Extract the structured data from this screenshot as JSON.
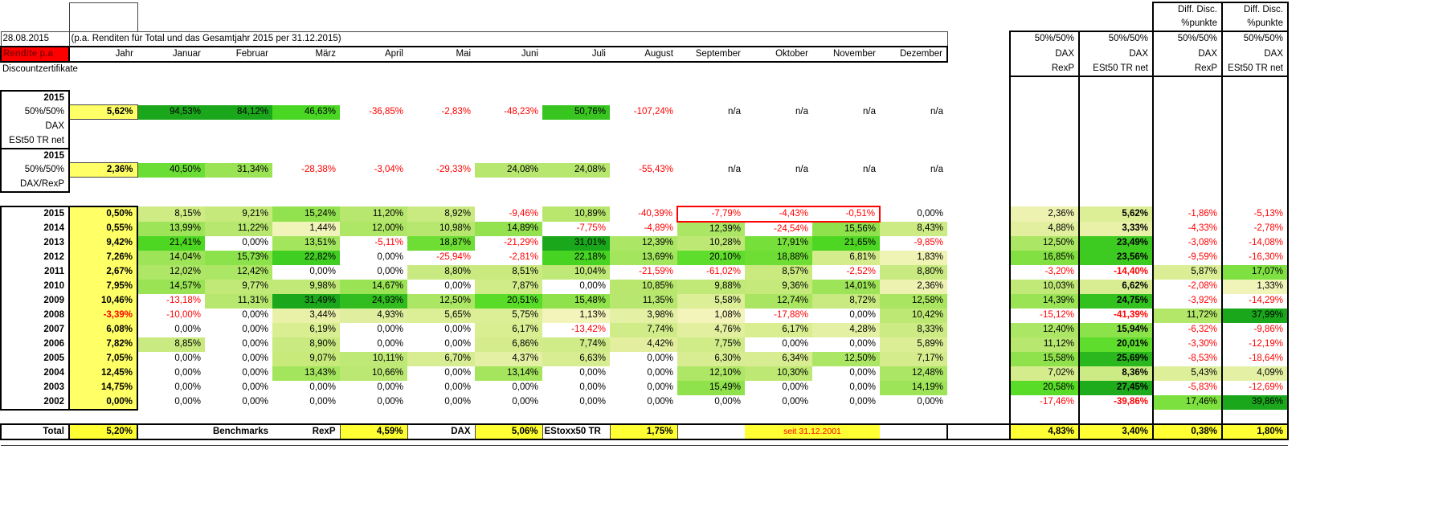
{
  "sheet": {
    "date": "28.08.2015",
    "note": "(p.a. Renditen für Total und das Gesamtjahr 2015 per 31.12.2015)",
    "title": "Rendite p.a",
    "jahr_label": "Jahr",
    "section": "Discountzertifikate",
    "months": [
      "Januar",
      "Februar",
      "März",
      "April",
      "Mai",
      "Juni",
      "Juli",
      "August",
      "September",
      "Oktober",
      "November",
      "Dezember"
    ],
    "right_cols": [
      {
        "top1": "",
        "top2": "",
        "l1": "50%/50%",
        "l2": "DAX",
        "l3": "RexP"
      },
      {
        "top1": "",
        "top2": "",
        "l1": "50%/50%",
        "l2": "DAX",
        "l3": "ESt50 TR net"
      },
      {
        "top1": "Diff. Disc.",
        "top2": "%punkte",
        "l1": "50%/50%",
        "l2": "DAX",
        "l3": "RexP"
      },
      {
        "top1": "Diff. Disc.",
        "top2": "%punkte",
        "l1": "50%/50%",
        "l2": "DAX",
        "l3": "ESt50 TR net"
      }
    ],
    "blocks": [
      {
        "labels": [
          "2015",
          "50%/50%",
          "DAX",
          "ESt50 TR net"
        ],
        "jahr": "5,62%",
        "months": [
          "94,53%",
          "84,12%",
          "46,63%",
          "-36,85%",
          "-2,83%",
          "-48,23%",
          "50,76%",
          "-107,24%",
          "n/a",
          "n/a",
          "n/a",
          "n/a"
        ]
      },
      {
        "labels": [
          "2015",
          "50%/50%",
          "DAX/RexP"
        ],
        "jahr": "2,36%",
        "months": [
          "40,50%",
          "31,34%",
          "-28,38%",
          "-3,04%",
          "-29,33%",
          "24,08%",
          "24,08%",
          "-55,43%",
          "n/a",
          "n/a",
          "n/a",
          "n/a"
        ]
      }
    ],
    "years": [
      {
        "year": "2015",
        "jahr": "0,50%",
        "months": [
          "8,15%",
          "9,21%",
          "15,24%",
          "11,20%",
          "8,92%",
          "-9,46%",
          "10,89%",
          "-40,39%",
          "-7,79%",
          "-4,43%",
          "-0,51%",
          "0,00%"
        ],
        "right": [
          "2,36%",
          "5,62%",
          "-1,86%",
          "-5,13%"
        ]
      },
      {
        "year": "2014",
        "jahr": "0,55%",
        "months": [
          "13,99%",
          "11,22%",
          "1,44%",
          "12,00%",
          "10,98%",
          "14,89%",
          "-7,75%",
          "-4,89%",
          "12,39%",
          "-24,54%",
          "15,56%",
          "8,43%"
        ],
        "right": [
          "4,88%",
          "3,33%",
          "-4,33%",
          "-2,78%"
        ]
      },
      {
        "year": "2013",
        "jahr": "9,42%",
        "months": [
          "21,41%",
          "0,00%",
          "13,51%",
          "-5,11%",
          "18,87%",
          "-21,29%",
          "31,01%",
          "12,39%",
          "10,28%",
          "17,91%",
          "21,65%",
          "-9,85%"
        ],
        "right": [
          "12,50%",
          "23,49%",
          "-3,08%",
          "-14,08%"
        ]
      },
      {
        "year": "2012",
        "jahr": "7,26%",
        "months": [
          "14,04%",
          "15,73%",
          "22,82%",
          "0,00%",
          "-25,94%",
          "-2,81%",
          "22,18%",
          "13,69%",
          "20,10%",
          "18,88%",
          "6,81%",
          "1,83%"
        ],
        "right": [
          "16,85%",
          "23,56%",
          "-9,59%",
          "-16,30%"
        ]
      },
      {
        "year": "2011",
        "jahr": "2,67%",
        "months": [
          "12,02%",
          "12,42%",
          "0,00%",
          "0,00%",
          "8,80%",
          "8,51%",
          "10,04%",
          "-21,59%",
          "-61,02%",
          "8,57%",
          "-2,52%",
          "8,80%"
        ],
        "right": [
          "-3,20%",
          "-14,40%",
          "5,87%",
          "17,07%"
        ]
      },
      {
        "year": "2010",
        "jahr": "7,95%",
        "months": [
          "14,57%",
          "9,77%",
          "9,98%",
          "14,67%",
          "0,00%",
          "7,87%",
          "0,00%",
          "10,85%",
          "9,88%",
          "9,36%",
          "14,01%",
          "2,36%"
        ],
        "right": [
          "10,03%",
          "6,62%",
          "-2,08%",
          "1,33%"
        ]
      },
      {
        "year": "2009",
        "jahr": "10,46%",
        "months": [
          "-13,18%",
          "11,31%",
          "31,49%",
          "24,93%",
          "12,50%",
          "20,51%",
          "15,48%",
          "11,35%",
          "5,58%",
          "12,74%",
          "8,72%",
          "12,58%"
        ],
        "right": [
          "14,39%",
          "24,75%",
          "-3,92%",
          "-14,29%"
        ]
      },
      {
        "year": "2008",
        "jahr": "-3,39%",
        "months": [
          "-10,00%",
          "0,00%",
          "3,44%",
          "4,93%",
          "5,65%",
          "5,75%",
          "1,13%",
          "3,98%",
          "1,08%",
          "-17,88%",
          "0,00%",
          "10,42%"
        ],
        "right": [
          "-15,12%",
          "-41,39%",
          "11,72%",
          "37,99%"
        ]
      },
      {
        "year": "2007",
        "jahr": "6,08%",
        "months": [
          "0,00%",
          "0,00%",
          "6,19%",
          "0,00%",
          "0,00%",
          "6,17%",
          "-13,42%",
          "7,74%",
          "4,76%",
          "6,17%",
          "4,28%",
          "8,33%"
        ],
        "right": [
          "12,40%",
          "15,94%",
          "-6,32%",
          "-9,86%"
        ]
      },
      {
        "year": "2006",
        "jahr": "7,82%",
        "months": [
          "8,85%",
          "0,00%",
          "8,90%",
          "0,00%",
          "0,00%",
          "6,86%",
          "7,74%",
          "4,42%",
          "7,75%",
          "0,00%",
          "0,00%",
          "5,89%"
        ],
        "right": [
          "11,12%",
          "20,01%",
          "-3,30%",
          "-12,19%"
        ]
      },
      {
        "year": "2005",
        "jahr": "7,05%",
        "months": [
          "0,00%",
          "0,00%",
          "9,07%",
          "10,11%",
          "6,70%",
          "4,37%",
          "6,63%",
          "0,00%",
          "6,30%",
          "6,34%",
          "12,50%",
          "7,17%"
        ],
        "right": [
          "15,58%",
          "25,69%",
          "-8,53%",
          "-18,64%"
        ]
      },
      {
        "year": "2004",
        "jahr": "12,45%",
        "months": [
          "0,00%",
          "0,00%",
          "13,43%",
          "10,66%",
          "0,00%",
          "13,14%",
          "0,00%",
          "0,00%",
          "12,10%",
          "10,30%",
          "0,00%",
          "12,48%"
        ],
        "right": [
          "7,02%",
          "8,36%",
          "5,43%",
          "4,09%"
        ]
      },
      {
        "year": "2003",
        "jahr": "14,75%",
        "months": [
          "0,00%",
          "0,00%",
          "0,00%",
          "0,00%",
          "0,00%",
          "0,00%",
          "0,00%",
          "0,00%",
          "15,49%",
          "0,00%",
          "0,00%",
          "14,19%"
        ],
        "right": [
          "20,58%",
          "27,45%",
          "-5,83%",
          "-12,69%"
        ]
      },
      {
        "year": "2002",
        "jahr": "0,00%",
        "months": [
          "0,00%",
          "0,00%",
          "0,00%",
          "0,00%",
          "0,00%",
          "0,00%",
          "0,00%",
          "0,00%",
          "0,00%",
          "0,00%",
          "0,00%",
          "0,00%"
        ],
        "right": [
          "-17,46%",
          "-39,86%",
          "17,46%",
          "39,86%"
        ]
      }
    ],
    "total": {
      "label": "Total",
      "value": "5,20%",
      "benchmarks_label": "Benchmarks",
      "rexp_label": "RexP",
      "rexp_value": "4,59%",
      "dax_label": "DAX",
      "dax_value": "5,06%",
      "estoxx_label": "EStoxx50 TR",
      "estoxx_value": "1,75%",
      "seit": "seit 31.12.2001",
      "right": [
        "4,83%",
        "3,40%",
        "0,38%",
        "1,80%"
      ]
    }
  },
  "colors": {
    "jahr_yellow": "#FFFF66",
    "total_yellow": "#FFFF33",
    "negative": "#FF0000",
    "header_bg": "#FF0000",
    "header_text": "#8B0000",
    "highlight_box": "#FF0000"
  }
}
